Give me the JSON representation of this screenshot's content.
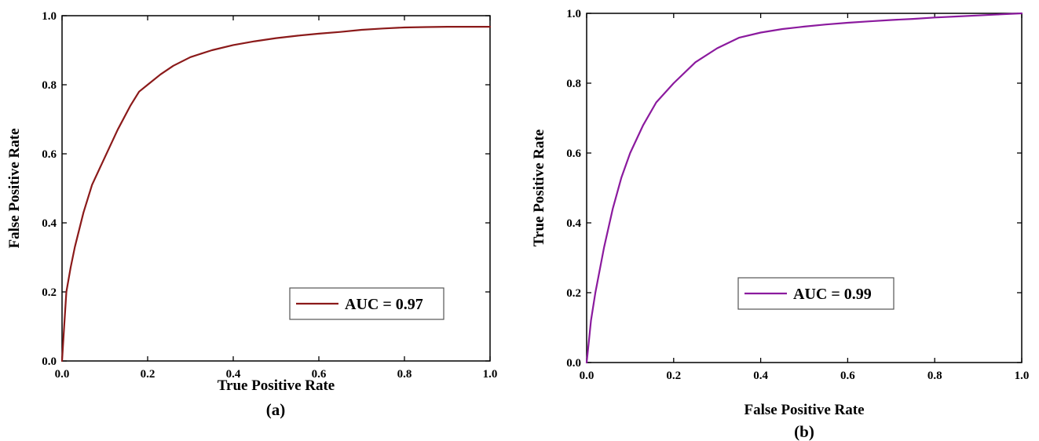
{
  "chart_data": [
    {
      "type": "line",
      "panel_label": "(a)",
      "xlabel": "True Positive Rate",
      "ylabel": "False Positive Rate",
      "xlim": [
        0.0,
        1.0
      ],
      "ylim": [
        0.0,
        1.0
      ],
      "xticks": [
        "0.0",
        "0.2",
        "0.4",
        "0.6",
        "0.8",
        "1.0"
      ],
      "yticks": [
        "0.0",
        "0.2",
        "0.4",
        "0.6",
        "0.8",
        "1.0"
      ],
      "grid": false,
      "legend_position": "bottom-right",
      "series": [
        {
          "name": "AUC = 0.97",
          "color": "#8b1a1a",
          "x": [
            0.0,
            0.005,
            0.01,
            0.02,
            0.03,
            0.05,
            0.07,
            0.1,
            0.13,
            0.16,
            0.18,
            0.2,
            0.23,
            0.26,
            0.3,
            0.35,
            0.4,
            0.45,
            0.5,
            0.55,
            0.6,
            0.65,
            0.7,
            0.75,
            0.8,
            0.85,
            0.9,
            0.95,
            1.0
          ],
          "y": [
            0.0,
            0.1,
            0.2,
            0.27,
            0.33,
            0.43,
            0.51,
            0.59,
            0.67,
            0.74,
            0.78,
            0.8,
            0.83,
            0.855,
            0.88,
            0.9,
            0.915,
            0.926,
            0.935,
            0.942,
            0.948,
            0.953,
            0.959,
            0.963,
            0.966,
            0.967,
            0.968,
            0.968,
            0.968
          ]
        }
      ]
    },
    {
      "type": "line",
      "panel_label": "(b)",
      "xlabel": "False Positive Rate",
      "ylabel": "True Positive Rate",
      "xlim": [
        0.0,
        1.0
      ],
      "ylim": [
        0.0,
        1.0
      ],
      "xticks": [
        "0.0",
        "0.2",
        "0.4",
        "0.6",
        "0.8",
        "1.0"
      ],
      "yticks": [
        "0.0",
        "0.2",
        "0.4",
        "0.6",
        "0.8",
        "1.0"
      ],
      "grid": false,
      "legend_position": "bottom-right",
      "series": [
        {
          "name": "AUC = 0.99",
          "color": "#8b1a9e",
          "x": [
            0.0,
            0.005,
            0.01,
            0.02,
            0.04,
            0.06,
            0.08,
            0.1,
            0.13,
            0.16,
            0.2,
            0.25,
            0.3,
            0.35,
            0.4,
            0.45,
            0.5,
            0.55,
            0.6,
            0.65,
            0.7,
            0.75,
            0.8,
            0.85,
            0.9,
            0.95,
            1.0
          ],
          "y": [
            0.0,
            0.06,
            0.12,
            0.2,
            0.33,
            0.44,
            0.53,
            0.6,
            0.68,
            0.745,
            0.8,
            0.86,
            0.9,
            0.93,
            0.945,
            0.955,
            0.962,
            0.968,
            0.973,
            0.977,
            0.981,
            0.984,
            0.988,
            0.991,
            0.994,
            0.997,
            1.0
          ]
        }
      ]
    }
  ]
}
